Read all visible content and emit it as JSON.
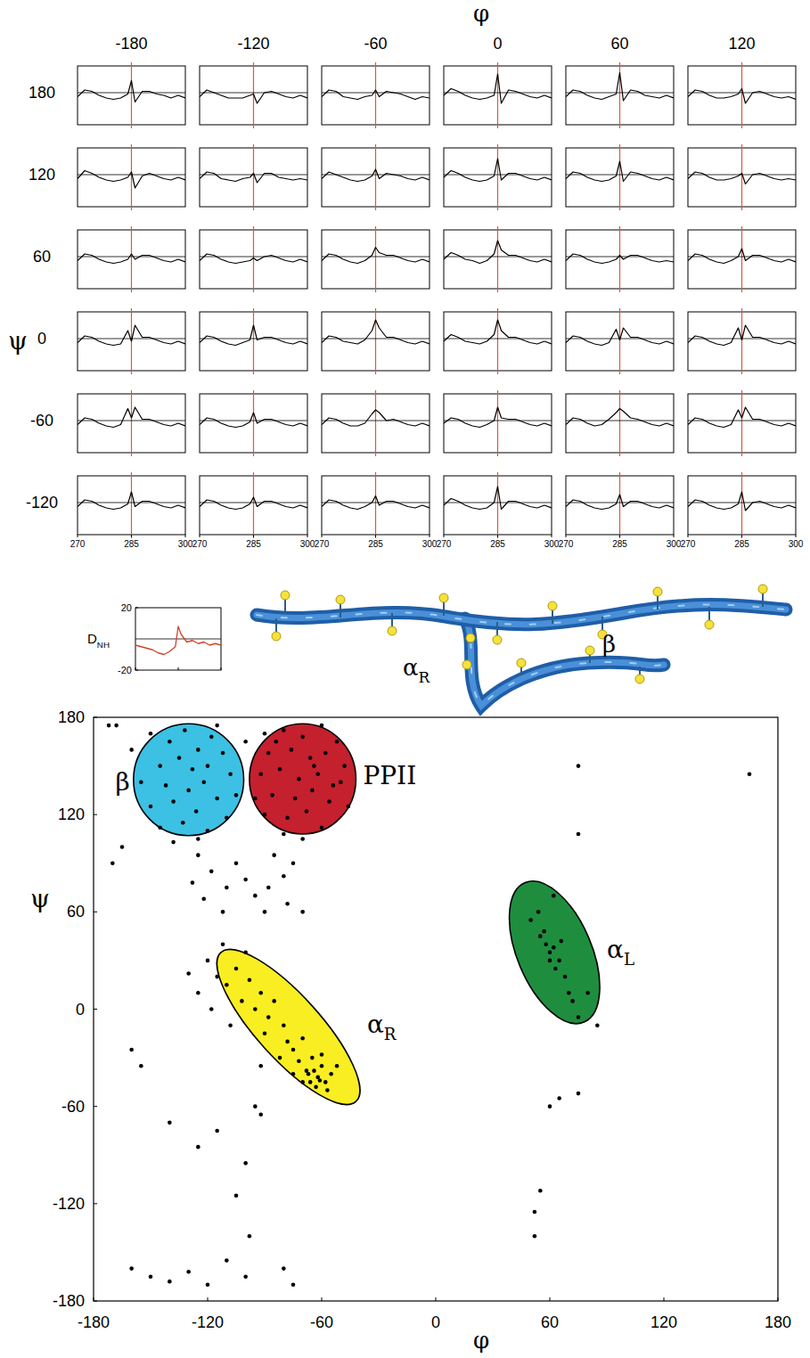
{
  "chart_data": [
    {
      "type": "line-grid",
      "x_label": "φ",
      "y_label": "ψ",
      "columns": [
        -180,
        -120,
        -60,
        0,
        60,
        120
      ],
      "rows": [
        180,
        120,
        60,
        0,
        -60,
        -120
      ],
      "x": [
        270,
        272,
        274,
        276,
        278,
        280,
        282,
        284,
        285,
        286,
        288,
        290,
        292,
        294,
        296,
        298,
        300
      ],
      "xlim": [
        270,
        300
      ],
      "xticks": [
        270,
        285,
        300
      ],
      "ylim": [
        -24,
        20
      ],
      "tick_labels": "x",
      "color": "#000000",
      "reference_lines": [
        {
          "axis": "x",
          "value": 285,
          "color": "#e0553c"
        },
        {
          "axis": "y",
          "value": 0,
          "color": "#000000"
        }
      ],
      "panels": [
        [
          [
            -3,
            2,
            1,
            -2,
            -4,
            -5,
            -4,
            -1,
            9,
            -7,
            1,
            1,
            -1,
            -2,
            -4,
            -2,
            -4
          ],
          [
            -3,
            2,
            0,
            -2,
            -4,
            -4,
            -4,
            -2,
            -1,
            -8,
            0,
            1,
            -1,
            -3,
            -4,
            -2,
            -4
          ],
          [
            -3,
            2,
            1,
            -3,
            -4,
            -5,
            -3,
            -2,
            2,
            -3,
            1,
            0,
            -1,
            -3,
            -5,
            -3,
            -4
          ],
          [
            -2,
            3,
            1,
            -2,
            -4,
            -5,
            -4,
            -2,
            14,
            -8,
            2,
            1,
            -1,
            -3,
            -4,
            -2,
            -4
          ],
          [
            -3,
            2,
            1,
            -2,
            -4,
            -5,
            -3,
            -1,
            15,
            -6,
            2,
            1,
            -2,
            -3,
            -4,
            -2,
            -4
          ],
          [
            -3,
            2,
            1,
            -2,
            -4,
            -4,
            -3,
            -1,
            3,
            -8,
            0,
            1,
            -1,
            -3,
            -4,
            -3,
            -5
          ]
        ],
        [
          [
            -3,
            3,
            1,
            -2,
            -4,
            -5,
            -4,
            -2,
            2,
            -10,
            -1,
            1,
            -1,
            -3,
            -4,
            -2,
            -4
          ],
          [
            -3,
            2,
            1,
            -3,
            -4,
            -5,
            -3,
            -2,
            1,
            -6,
            1,
            1,
            -2,
            -3,
            -4,
            -3,
            -4
          ],
          [
            -3,
            2,
            0,
            -2,
            -4,
            -5,
            -4,
            -1,
            4,
            -3,
            1,
            0,
            -1,
            -3,
            -4,
            -2,
            -4
          ],
          [
            -2,
            3,
            1,
            -2,
            -4,
            -5,
            -4,
            -1,
            12,
            -4,
            1,
            1,
            -1,
            -3,
            -4,
            -2,
            -4
          ],
          [
            -3,
            2,
            1,
            -2,
            -4,
            -5,
            -4,
            -1,
            10,
            -5,
            2,
            1,
            -1,
            -3,
            -4,
            -2,
            -4
          ],
          [
            -3,
            2,
            1,
            -2,
            -4,
            -4,
            -3,
            -1,
            1,
            -7,
            0,
            1,
            -1,
            -3,
            -4,
            -3,
            -4
          ]
        ],
        [
          [
            -3,
            2,
            1,
            -2,
            -4,
            -5,
            -4,
            -2,
            2,
            -2,
            1,
            1,
            -1,
            -3,
            -4,
            -2,
            -4
          ],
          [
            -3,
            2,
            1,
            -2,
            -4,
            -5,
            -4,
            -3,
            -1,
            -3,
            0,
            1,
            -1,
            -3,
            -4,
            -2,
            -4
          ],
          [
            -3,
            2,
            1,
            -2,
            -4,
            -5,
            -3,
            1,
            7,
            3,
            1,
            1,
            -1,
            -3,
            -4,
            -2,
            -4
          ],
          [
            -2,
            3,
            1,
            -2,
            -3,
            -5,
            -3,
            2,
            12,
            5,
            1,
            1,
            -1,
            -3,
            -4,
            -2,
            -4
          ],
          [
            -3,
            2,
            1,
            -2,
            -4,
            -5,
            -4,
            -2,
            1,
            -2,
            1,
            1,
            -1,
            -3,
            -4,
            -3,
            -4
          ],
          [
            -3,
            2,
            1,
            -2,
            -4,
            -5,
            -3,
            0,
            6,
            -3,
            1,
            1,
            -1,
            -3,
            -4,
            -2,
            -4
          ]
        ],
        [
          [
            -3,
            2,
            1,
            -2,
            -4,
            -5,
            -4,
            6,
            -2,
            10,
            1,
            1,
            -1,
            -3,
            -4,
            -2,
            -4
          ],
          [
            -3,
            2,
            1,
            -2,
            -4,
            -5,
            -3,
            -1,
            10,
            -1,
            1,
            1,
            -1,
            -3,
            -4,
            -2,
            -4
          ],
          [
            -3,
            2,
            1,
            -2,
            -3,
            -4,
            -1,
            6,
            14,
            8,
            1,
            1,
            -1,
            -3,
            -4,
            -2,
            -4
          ],
          [
            -2,
            3,
            1,
            -2,
            -3,
            -4,
            -2,
            3,
            14,
            6,
            1,
            1,
            -1,
            -3,
            -4,
            -2,
            -4
          ],
          [
            -3,
            2,
            1,
            -2,
            -4,
            -5,
            -3,
            7,
            -1,
            8,
            1,
            1,
            -1,
            -3,
            -4,
            -2,
            -4
          ],
          [
            -3,
            2,
            1,
            -2,
            -4,
            -5,
            -3,
            8,
            -1,
            10,
            1,
            1,
            -1,
            -3,
            -4,
            -2,
            -4
          ]
        ],
        [
          [
            -3,
            2,
            1,
            -2,
            -4,
            -5,
            -3,
            9,
            2,
            10,
            1,
            1,
            -1,
            -3,
            -4,
            -2,
            -4
          ],
          [
            -3,
            2,
            1,
            -2,
            -4,
            -5,
            -4,
            -1,
            6,
            -2,
            1,
            1,
            -1,
            -3,
            -4,
            -2,
            -4
          ],
          [
            -3,
            2,
            1,
            -2,
            -4,
            -4,
            -2,
            5,
            8,
            6,
            0,
            1,
            -1,
            -3,
            -4,
            -2,
            -4
          ],
          [
            -2,
            2,
            1,
            -2,
            -4,
            -5,
            -3,
            0,
            10,
            2,
            1,
            1,
            -1,
            -3,
            -4,
            -2,
            -4
          ],
          [
            -3,
            2,
            1,
            -2,
            -4,
            -3,
            1,
            6,
            9,
            7,
            2,
            1,
            -1,
            -3,
            -4,
            -2,
            -4
          ],
          [
            -3,
            2,
            1,
            -2,
            -4,
            -5,
            -3,
            8,
            2,
            10,
            1,
            1,
            -1,
            -3,
            -4,
            -2,
            -4
          ]
        ],
        [
          [
            -3,
            2,
            1,
            -2,
            -4,
            -5,
            -4,
            -1,
            8,
            -3,
            1,
            1,
            -1,
            -3,
            -4,
            -2,
            -4
          ],
          [
            -3,
            2,
            1,
            -2,
            -4,
            -5,
            -4,
            -1,
            4,
            -3,
            1,
            1,
            -1,
            -3,
            -4,
            -2,
            -4
          ],
          [
            -3,
            2,
            1,
            -2,
            -4,
            -5,
            -3,
            0,
            5,
            -2,
            1,
            1,
            -1,
            -3,
            -4,
            -2,
            -4
          ],
          [
            -2,
            3,
            1,
            -2,
            -4,
            -5,
            -4,
            0,
            12,
            -5,
            1,
            1,
            -1,
            -3,
            -4,
            -2,
            -4
          ],
          [
            -3,
            2,
            1,
            -2,
            -4,
            -5,
            -4,
            -1,
            6,
            -3,
            1,
            1,
            -1,
            -3,
            -4,
            -2,
            -4
          ],
          [
            -3,
            2,
            1,
            -2,
            -4,
            -5,
            -4,
            -1,
            8,
            -6,
            0,
            1,
            -1,
            -3,
            -4,
            -2,
            -4
          ]
        ]
      ]
    },
    {
      "type": "line",
      "y_label": {
        "text": "D",
        "sub": "NH"
      },
      "x": [
        270,
        272,
        274,
        276,
        278,
        280,
        282,
        284,
        285,
        286,
        288,
        290,
        292,
        294,
        296,
        298,
        300
      ],
      "values": [
        -4,
        -5,
        -6,
        -7,
        -9,
        -10,
        -8,
        -5,
        8,
        3,
        -2,
        -1,
        -3,
        -2,
        -4,
        -3,
        -4
      ],
      "xlim": [
        270,
        300
      ],
      "xticks": [
        270,
        285,
        300
      ],
      "ylim": [
        -20,
        20
      ],
      "yticks": [
        -20,
        20
      ],
      "tick_labels": "y",
      "color": "#d2402a",
      "reference_lines": [
        {
          "axis": "y",
          "value": 0,
          "color": "#000000"
        }
      ]
    },
    {
      "type": "diagram",
      "labels": [
        {
          "text": "α",
          "sub": "R"
        },
        {
          "text": "β"
        }
      ]
    },
    {
      "type": "scatter",
      "x_label": "φ",
      "y_label": "ψ",
      "x": [
        -150,
        -140,
        -132,
        -125,
        -118,
        -145,
        -135,
        -128,
        -120,
        -112,
        -155,
        -142,
        -130,
        -122,
        -108,
        -150,
        -138,
        -126,
        -115,
        -105,
        -145,
        -133,
        -120,
        -110,
        -138,
        -125,
        -160,
        -168,
        -100,
        -115,
        -90,
        -80,
        -70,
        -60,
        -52,
        -88,
        -76,
        -66,
        -58,
        -48,
        -92,
        -82,
        -72,
        -62,
        -54,
        -86,
        -74,
        -65,
        -56,
        -46,
        -90,
        -78,
        -68,
        -60,
        -80,
        -70,
        -95,
        -84,
        -64,
        -50,
        -125,
        -118,
        -110,
        -122,
        -105,
        -112,
        -95,
        -85,
        -80,
        -88,
        -75,
        -78,
        -90,
        -70,
        -128,
        -100,
        -120,
        -112,
        -105,
        -100,
        -110,
        -98,
        -92,
        -102,
        -95,
        -88,
        -85,
        -80,
        -90,
        -78,
        -75,
        -70,
        -72,
        -68,
        -65,
        -62,
        -60,
        -58,
        -66,
        -55,
        -63,
        -57,
        -70,
        -60,
        -52,
        -67,
        -64,
        -61,
        -75,
        -82,
        -115,
        -125,
        -118,
        -108,
        -130,
        -92,
        -160,
        -155,
        -140,
        -125,
        -115,
        -100,
        -95,
        -92,
        -105,
        -98,
        -160,
        -150,
        -140,
        -130,
        -120,
        -110,
        -100,
        -80,
        -75,
        -170,
        -165,
        -172,
        50,
        55,
        58,
        60,
        62,
        65,
        57,
        63,
        68,
        70,
        72,
        60,
        66,
        54,
        62,
        75,
        85,
        80,
        75,
        75,
        60,
        65,
        75,
        55,
        52,
        52,
        165
      ],
      "values": [
        170,
        165,
        172,
        160,
        168,
        150,
        155,
        148,
        150,
        158,
        140,
        138,
        135,
        140,
        145,
        125,
        128,
        122,
        130,
        132,
        112,
        115,
        110,
        118,
        103,
        105,
        160,
        175,
        165,
        175,
        170,
        172,
        168,
        175,
        165,
        158,
        160,
        155,
        158,
        150,
        145,
        148,
        142,
        145,
        138,
        132,
        130,
        135,
        128,
        125,
        120,
        118,
        122,
        112,
        108,
        105,
        130,
        165,
        150,
        140,
        95,
        85,
        75,
        68,
        90,
        60,
        70,
        95,
        82,
        75,
        90,
        65,
        60,
        60,
        78,
        80,
        30,
        40,
        25,
        35,
        15,
        18,
        10,
        5,
        0,
        -5,
        5,
        -10,
        -15,
        -20,
        -25,
        -18,
        -32,
        -38,
        -30,
        -42,
        -35,
        -45,
        -45,
        -40,
        -48,
        -50,
        -45,
        -28,
        -35,
        -40,
        -38,
        -44,
        -40,
        -30,
        20,
        10,
        0,
        -10,
        22,
        -35,
        -25,
        -35,
        -70,
        -85,
        -75,
        -95,
        -60,
        -65,
        -115,
        -140,
        -160,
        -165,
        -168,
        -162,
        -170,
        -155,
        -165,
        -160,
        -170,
        90,
        100,
        175,
        55,
        45,
        40,
        35,
        38,
        30,
        48,
        25,
        20,
        10,
        5,
        30,
        42,
        60,
        70,
        -5,
        -10,
        10,
        150,
        108,
        -60,
        -55,
        -52,
        -112,
        -125,
        -140,
        145
      ],
      "xlim": [
        -180,
        180
      ],
      "ylim": [
        -180,
        180
      ],
      "xticks": [
        -180,
        -120,
        -60,
        0,
        60,
        120,
        180
      ],
      "yticks": [
        -180,
        -120,
        -60,
        0,
        60,
        120,
        180
      ],
      "color": "#000000",
      "marker": "circle",
      "regions": [
        {
          "label": {
            "text": "β"
          },
          "color": "#3cc0e4",
          "major": [
            [
              -130,
              176
            ],
            [
              -130,
              107
            ]
          ],
          "minor": [
            [
              -159,
              141
            ],
            [
              -101,
              141
            ]
          ]
        },
        {
          "label": {
            "text": "PPII"
          },
          "color": "#c4202e",
          "major": [
            [
              -70,
              176
            ],
            [
              -70,
              108
            ]
          ],
          "minor": [
            [
              -98,
              141
            ],
            [
              -42,
              141
            ]
          ]
        },
        {
          "label": {
            "text": "α",
            "sub": "R"
          },
          "color": "#f8ee22",
          "major": [
            [
              -113,
              35
            ],
            [
              -42,
              -57
            ]
          ],
          "minor": [
            [
              -65,
              2
            ],
            [
              -90,
              -24
            ]
          ]
        },
        {
          "label": {
            "text": "α",
            "sub": "L"
          },
          "color": "#1e8e3e",
          "major": [
            [
              47,
              78
            ],
            [
              78,
              -8
            ]
          ],
          "minor": [
            [
              80,
              44
            ],
            [
              44,
              26
            ]
          ]
        }
      ]
    }
  ]
}
